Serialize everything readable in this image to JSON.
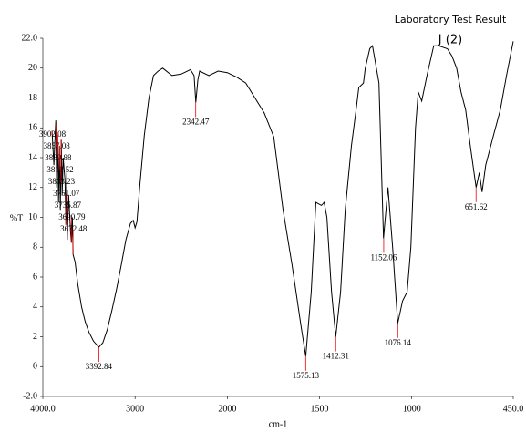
{
  "chart_data": {
    "type": "line",
    "title": "Laboratory Test Result",
    "subtitle": "J (2)",
    "x_label": "cm-1",
    "y_label": "%T",
    "xlim": [
      4000,
      450
    ],
    "ylim": [
      -2,
      22
    ],
    "x_scale_change": {
      "at": 2000,
      "factor": 2
    },
    "xticks": [
      {
        "value": 4000,
        "label": "4000.0"
      },
      3000,
      2000,
      1500,
      1000,
      {
        "value": 450,
        "label": "450.0"
      }
    ],
    "yticks": [
      {
        "value": 22,
        "label": "22.0"
      },
      20,
      18,
      16,
      14,
      12,
      10,
      8,
      6,
      4,
      2,
      0,
      {
        "value": -2,
        "label": "-2.0"
      }
    ],
    "series": [
      {
        "color": "#000000",
        "x": [
          3900,
          3880,
          3860,
          3850,
          3840,
          3830,
          3820,
          3810,
          3800,
          3790,
          3780,
          3760,
          3750,
          3740,
          3735,
          3720,
          3700,
          3690,
          3680,
          3672,
          3650,
          3620,
          3580,
          3540,
          3500,
          3450,
          3392,
          3350,
          3300,
          3250,
          3200,
          3150,
          3100,
          3050,
          3020,
          3000,
          2980,
          2950,
          2900,
          2850,
          2800,
          2750,
          2700,
          2600,
          2500,
          2400,
          2360,
          2342,
          2320,
          2300,
          2200,
          2100,
          2000,
          1950,
          1900,
          1850,
          1800,
          1748,
          1698,
          1649,
          1599,
          1575,
          1545,
          1520,
          1490,
          1475,
          1460,
          1435,
          1412,
          1386,
          1361,
          1327,
          1302,
          1287,
          1262,
          1252,
          1228,
          1213,
          1178,
          1153,
          1129,
          1104,
          1076,
          1050,
          1025,
          1005,
          980,
          965,
          946,
          916,
          881,
          856,
          807,
          782,
          757,
          733,
          708,
          683,
          658,
          651,
          634,
          619,
          599,
          559,
          520,
          485,
          450
        ],
        "values": [
          15.8,
          13.5,
          16.5,
          12,
          15.5,
          11,
          14.8,
          10.5,
          15.2,
          11.5,
          14,
          12.5,
          9.5,
          13,
          8.5,
          11.5,
          9,
          8.3,
          10,
          7.5,
          7,
          5.5,
          4,
          3,
          2.3,
          1.7,
          1.3,
          1.6,
          2.5,
          3.8,
          5.2,
          6.8,
          8.5,
          9.6,
          9.8,
          9.3,
          9.7,
          12,
          15.5,
          18,
          19.5,
          19.8,
          20,
          19.5,
          19.6,
          19.9,
          19.5,
          17.7,
          19.2,
          19.8,
          19.5,
          19.8,
          19.7,
          19.4,
          19,
          18,
          17,
          15.4,
          10.5,
          6.8,
          2.6,
          0.7,
          5,
          11,
          10.8,
          11,
          10,
          5,
          2,
          5,
          10.5,
          14.8,
          17.2,
          18.7,
          19,
          20,
          21.3,
          21.5,
          19,
          8.6,
          12,
          8,
          2.9,
          4.4,
          5,
          8,
          16,
          18.4,
          17.8,
          19.6,
          21.5,
          21.5,
          21.3,
          20.8,
          20,
          18.4,
          17.2,
          14.8,
          12.6,
          12,
          13,
          11.7,
          13.5,
          15.4,
          17.2,
          19.6,
          21.8
        ]
      }
    ],
    "peaks": [
      {
        "x": 3902.08,
        "y": 15.8
      },
      {
        "x": 3857.08,
        "y": 16.2
      },
      {
        "x": 3839.88,
        "y": 15.5
      },
      {
        "x": 3818.52,
        "y": 14.8
      },
      {
        "x": 3803.23,
        "y": 15.2
      },
      {
        "x": 3751.07,
        "y": 9.5
      },
      {
        "x": 3735.87,
        "y": 8.5
      },
      {
        "x": 3690.79,
        "y": 8.3
      },
      {
        "x": 3672.48,
        "y": 7.5
      },
      {
        "x": 3392.84,
        "y": 1.3
      },
      {
        "x": 2342.47,
        "y": 17.7
      },
      {
        "x": 1575.13,
        "y": 0.7
      },
      {
        "x": 1412.31,
        "y": 2
      },
      {
        "x": 1152.06,
        "y": 8.6
      },
      {
        "x": 1076.14,
        "y": 2.9
      },
      {
        "x": 651.62,
        "y": 12
      }
    ]
  }
}
